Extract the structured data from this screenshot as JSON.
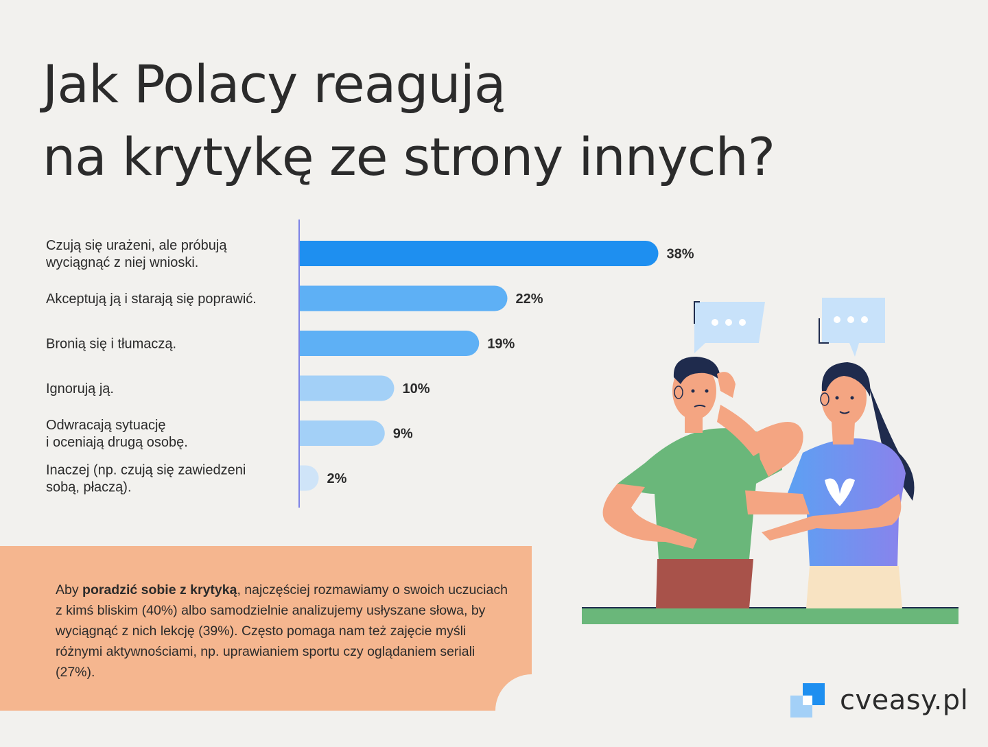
{
  "title": {
    "line1": "Jak Polacy reagują",
    "line2": "na krytykę ze strony innych?"
  },
  "chart_data": {
    "type": "bar",
    "orientation": "horizontal",
    "categories": [
      [
        "Czują się urażeni, ale próbują",
        "wyciągnąć z niej wnioski."
      ],
      [
        "Akceptują ją i starają się poprawić."
      ],
      [
        "Bronią się i tłumaczą."
      ],
      [
        "Ignorują ją."
      ],
      [
        "Odwracają sytuację",
        "i oceniają drugą osobę."
      ],
      [
        "Inaczej (np. czują się zawiedzeni",
        "sobą, płaczą)."
      ]
    ],
    "values": [
      38,
      22,
      19,
      10,
      9,
      2
    ],
    "value_labels": [
      "38%",
      "22%",
      "19%",
      "10%",
      "9%",
      "2%"
    ],
    "unit": "%",
    "colors": [
      "#1e8ff0",
      "#5eb0f5",
      "#5eb0f5",
      "#a3d0f7",
      "#a3d0f7",
      "#cfe4f8"
    ],
    "axis_color": "#7d83e6"
  },
  "note": {
    "prefix": "Aby ",
    "bold": "poradzić sobie z krytyką",
    "suffix": ", najczęściej rozmawiamy o swoich uczuciach z kimś bliskim (40%) albo samodzielnie analizujemy usłyszane słowa, by wyciągnąć z nich lekcję (39%). Często pomaga nam też zajęcie myśli różnymi aktywnościami, np. uprawianiem sportu czy oglądaniem seriali (27%)."
  },
  "logo": {
    "text": "cveasy.pl"
  },
  "colors": {
    "background": "#f2f1ee",
    "note_bg": "#f5b68f",
    "man_shirt": "#6ab77a",
    "woman_shirt": "#7b86ee",
    "skin": "#f4a582",
    "hair": "#1f2b4d",
    "bubble": "#c8e2fa",
    "ground": "#6ab77a"
  },
  "icons": {
    "speech_bubble": "speech-bubble-icon",
    "heart": "heart-icon",
    "logo_mark": "cveasy-logo-icon"
  }
}
